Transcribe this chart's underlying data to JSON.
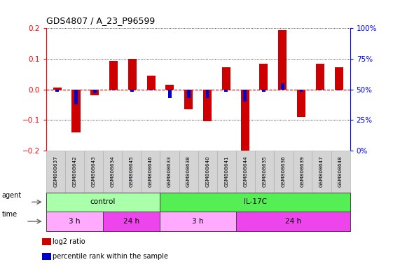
{
  "title": "GDS4807 / A_23_P96599",
  "samples": [
    "GSM808637",
    "GSM808642",
    "GSM808643",
    "GSM808634",
    "GSM808645",
    "GSM808646",
    "GSM808633",
    "GSM808638",
    "GSM808640",
    "GSM808641",
    "GSM808644",
    "GSM808635",
    "GSM808636",
    "GSM808639",
    "GSM808647",
    "GSM808648"
  ],
  "log2_ratio": [
    0.005,
    -0.14,
    -0.02,
    0.093,
    0.1,
    0.045,
    0.015,
    -0.065,
    -0.103,
    0.073,
    -0.205,
    0.085,
    0.195,
    -0.09,
    0.085,
    0.073
  ],
  "percentile_rank": [
    48,
    38,
    47,
    49,
    48,
    49,
    43,
    43,
    43,
    48,
    40,
    48,
    55,
    48,
    49,
    49
  ],
  "ylim": [
    -0.2,
    0.2
  ],
  "yticks": [
    -0.2,
    -0.1,
    0.0,
    0.1,
    0.2
  ],
  "right_yticks": [
    0,
    25,
    50,
    75,
    100
  ],
  "bar_color_red": "#cc0000",
  "bar_color_blue": "#0000cc",
  "dashed_line_color": "#cc0000",
  "agent_groups": [
    {
      "label": "control",
      "start": 0,
      "end": 6,
      "color": "#aaffaa"
    },
    {
      "label": "IL-17C",
      "start": 6,
      "end": 16,
      "color": "#55ee55"
    }
  ],
  "time_groups": [
    {
      "label": "3 h",
      "start": 0,
      "end": 3,
      "color": "#ffaaff"
    },
    {
      "label": "24 h",
      "start": 3,
      "end": 6,
      "color": "#ee44ee"
    },
    {
      "label": "3 h",
      "start": 6,
      "end": 10,
      "color": "#ffaaff"
    },
    {
      "label": "24 h",
      "start": 10,
      "end": 16,
      "color": "#ee44ee"
    }
  ],
  "legend_items": [
    {
      "color": "#cc0000",
      "label": "log2 ratio"
    },
    {
      "color": "#0000cc",
      "label": "percentile rank within the sample"
    }
  ],
  "bg_color": "#ffffff",
  "title_size": 9
}
